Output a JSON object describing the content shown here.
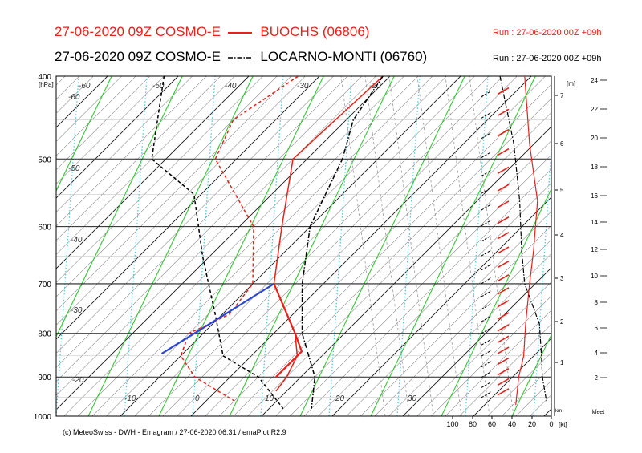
{
  "header": {
    "line1_run": "27-06-2020 09Z COSMO-E",
    "line1_station": "BUOCHS (06806)",
    "line1_runinfo": "Run : 27-06-2020 00Z +09h",
    "line2_run": "27-06-2020 09Z COSMO-E",
    "line2_station": "LOCARNO-MONTI (06760)",
    "line2_runinfo": "Run : 27-06-2020 00Z +09h"
  },
  "footer": "(c) MeteoSwiss - DWH - Emagram / 27-06-2020  06:31 / emaPlot R2.9",
  "colors": {
    "buochs": "#e8221a",
    "locarno": "#000000",
    "parcel": "#2b47d8",
    "dry_adiabat": "#33c833",
    "moist_adiabat": "#4cc8e8",
    "isotherm": "#000000",
    "grid": "#888888"
  },
  "chart_data": {
    "type": "line",
    "title": "",
    "y_axis": {
      "label": "[hPa]",
      "scale": "log",
      "ylim": [
        1000,
        400
      ],
      "ticks": [
        "400",
        "500",
        "600",
        "700",
        "800",
        "900",
        "1000"
      ]
    },
    "x_axis": {
      "label": "",
      "isotherm_labels": [
        "-60",
        "-60",
        "-50",
        "-50",
        "-40",
        "-40",
        "-30",
        "-30",
        "-20",
        "-20",
        "-10",
        "0",
        "10",
        "20",
        "30"
      ]
    },
    "wind_axis": {
      "unit": "[kt]",
      "ticks": [
        "100",
        "80",
        "60",
        "40",
        "20",
        "0"
      ],
      "unit_km": "km"
    },
    "height_m_axis": {
      "label": "[m]",
      "ticks": [
        "7",
        "6",
        "5",
        "4",
        "3",
        "2",
        "1"
      ]
    },
    "height_kfeet_axis": {
      "label": "kfeet",
      "ticks": [
        "24",
        "22",
        "20",
        "18",
        "16",
        "14",
        "12",
        "10",
        "8",
        "6",
        "4",
        "2"
      ]
    },
    "series": [
      {
        "name": "BUOCHS (06806)",
        "role": "temperature",
        "style": "solid",
        "points": [
          [
            400,
            -21
          ],
          [
            500,
            -22
          ],
          [
            600,
            -14
          ],
          [
            700,
            -7
          ],
          [
            800,
            3
          ],
          [
            850,
            6.5
          ],
          [
            900,
            8
          ],
          [
            935,
            8.5
          ]
        ]
      },
      {
        "name": "BUOCHS (06806)",
        "role": "dewpoint",
        "style": "dashed",
        "points": [
          [
            400,
            -33
          ],
          [
            450,
            -36
          ],
          [
            500,
            -33
          ],
          [
            600,
            -18
          ],
          [
            700,
            -10
          ],
          [
            760,
            -9
          ],
          [
            800,
            -12
          ],
          [
            850,
            -10
          ],
          [
            900,
            -5
          ],
          [
            960,
            4
          ]
        ]
      },
      {
        "name": "LOCARNO-MONTI (06760)",
        "role": "temperature",
        "style": "dashdot",
        "points": [
          [
            400,
            -21
          ],
          [
            450,
            -19
          ],
          [
            500,
            -15
          ],
          [
            600,
            -10
          ],
          [
            700,
            -3
          ],
          [
            800,
            4
          ],
          [
            900,
            12
          ],
          [
            980,
            16
          ]
        ]
      },
      {
        "name": "LOCARNO-MONTI (06760)",
        "role": "dewpoint",
        "style": "dashed",
        "points": [
          [
            400,
            -52
          ],
          [
            500,
            -42
          ],
          [
            550,
            -31
          ],
          [
            650,
            -21
          ],
          [
            760,
            -11
          ],
          [
            850,
            -4
          ],
          [
            900,
            4
          ],
          [
            980,
            12
          ]
        ]
      },
      {
        "name": "parcel_buochs",
        "role": "parcel",
        "style": "solid",
        "points": [
          [
            700,
            -7
          ],
          [
            800,
            3
          ],
          [
            840,
            6.5
          ],
          [
            900,
            6.5
          ]
        ]
      },
      {
        "name": "parcel_dry_segment",
        "role": "parcel",
        "style": "solid",
        "points": [
          [
            700,
            -7
          ],
          [
            845,
            -13
          ]
        ]
      }
    ],
    "profile_wind_speed": {
      "unit": "kt",
      "buochs": [
        [
          400,
          27
        ],
        [
          480,
          22
        ],
        [
          560,
          14
        ],
        [
          640,
          18
        ],
        [
          700,
          22
        ],
        [
          780,
          26
        ],
        [
          850,
          28
        ],
        [
          900,
          33
        ],
        [
          970,
          36
        ]
      ],
      "locarno": [
        [
          400,
          52
        ],
        [
          480,
          38
        ],
        [
          560,
          32
        ],
        [
          640,
          30
        ],
        [
          700,
          27
        ],
        [
          780,
          12
        ],
        [
          850,
          10
        ],
        [
          900,
          9
        ],
        [
          960,
          5
        ]
      ]
    },
    "legend": "top"
  }
}
